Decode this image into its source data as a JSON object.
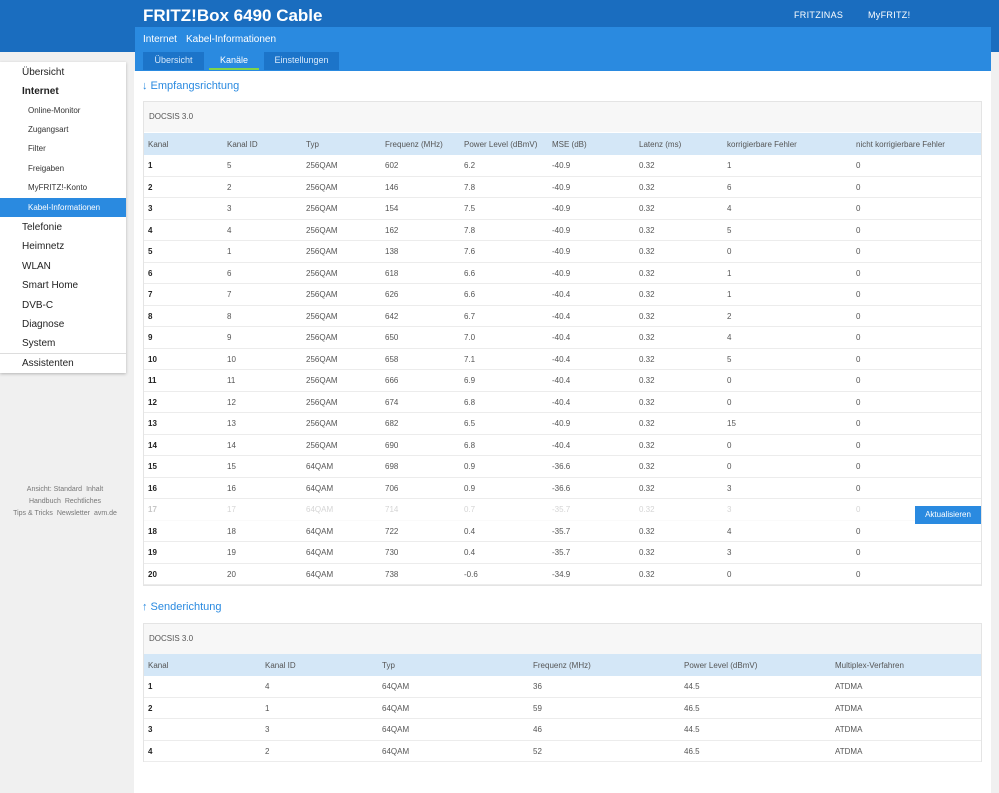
{
  "header": {
    "brand": "FRITZ!Box 6490 Cable",
    "links": [
      "FRITZINAS",
      "MyFRITZ!"
    ],
    "breadcrumb": [
      "Internet",
      "Kabel-Informationen"
    ],
    "tabs": [
      "Übersicht",
      "Kanäle",
      "Einstellungen"
    ],
    "active_tab": "Kanäle"
  },
  "sidebar": [
    {
      "label": "Übersicht",
      "level": 1
    },
    {
      "label": "Internet",
      "level": 1,
      "bold": true
    },
    {
      "label": "Online-Monitor",
      "level": 2
    },
    {
      "label": "Zugangsart",
      "level": 2
    },
    {
      "label": "Filter",
      "level": 2
    },
    {
      "label": "Freigaben",
      "level": 2
    },
    {
      "label": "MyFRITZ!-Konto",
      "level": 2
    },
    {
      "label": "Kabel-Informationen",
      "level": 2,
      "selected": true
    },
    {
      "label": "Telefonie",
      "level": 1
    },
    {
      "label": "Heimnetz",
      "level": 1
    },
    {
      "label": "WLAN",
      "level": 1
    },
    {
      "label": "Smart Home",
      "level": 1
    },
    {
      "label": "DVB-C",
      "level": 1
    },
    {
      "label": "Diagnose",
      "level": 1
    },
    {
      "label": "System",
      "level": 1
    },
    {
      "label": "Assistenten",
      "level": 1,
      "assist": true
    }
  ],
  "footer": [
    [
      "Ansicht: Standard",
      "Inhalt"
    ],
    [
      "Handbuch",
      "Rechtliches"
    ],
    [
      "Tips & Tricks",
      "Newsletter",
      "avm.de"
    ]
  ],
  "downstream": {
    "title": "↓ Empfangsrichtung",
    "docsis": "DOCSIS 3.0",
    "columns": [
      "Kanal",
      "Kanal ID",
      "Typ",
      "Frequenz (MHz)",
      "Power Level (dBmV)",
      "MSE (dB)",
      "Latenz (ms)",
      "korrigierbare Fehler",
      "nicht korrigierbare Fehler"
    ],
    "rows": [
      [
        "1",
        "5",
        "256QAM",
        "602",
        "6.2",
        "-40.9",
        "0.32",
        "1",
        "0"
      ],
      [
        "2",
        "2",
        "256QAM",
        "146",
        "7.8",
        "-40.9",
        "0.32",
        "6",
        "0"
      ],
      [
        "3",
        "3",
        "256QAM",
        "154",
        "7.5",
        "-40.9",
        "0.32",
        "4",
        "0"
      ],
      [
        "4",
        "4",
        "256QAM",
        "162",
        "7.8",
        "-40.9",
        "0.32",
        "5",
        "0"
      ],
      [
        "5",
        "1",
        "256QAM",
        "138",
        "7.6",
        "-40.9",
        "0.32",
        "0",
        "0"
      ],
      [
        "6",
        "6",
        "256QAM",
        "618",
        "6.6",
        "-40.9",
        "0.32",
        "1",
        "0"
      ],
      [
        "7",
        "7",
        "256QAM",
        "626",
        "6.6",
        "-40.4",
        "0.32",
        "1",
        "0"
      ],
      [
        "8",
        "8",
        "256QAM",
        "642",
        "6.7",
        "-40.4",
        "0.32",
        "2",
        "0"
      ],
      [
        "9",
        "9",
        "256QAM",
        "650",
        "7.0",
        "-40.4",
        "0.32",
        "4",
        "0"
      ],
      [
        "10",
        "10",
        "256QAM",
        "658",
        "7.1",
        "-40.4",
        "0.32",
        "5",
        "0"
      ],
      [
        "11",
        "11",
        "256QAM",
        "666",
        "6.9",
        "-40.4",
        "0.32",
        "0",
        "0"
      ],
      [
        "12",
        "12",
        "256QAM",
        "674",
        "6.8",
        "-40.4",
        "0.32",
        "0",
        "0"
      ],
      [
        "13",
        "13",
        "256QAM",
        "682",
        "6.5",
        "-40.9",
        "0.32",
        "15",
        "0"
      ],
      [
        "14",
        "14",
        "256QAM",
        "690",
        "6.8",
        "-40.4",
        "0.32",
        "0",
        "0"
      ],
      [
        "15",
        "15",
        "64QAM",
        "698",
        "0.9",
        "-36.6",
        "0.32",
        "0",
        "0"
      ],
      [
        "16",
        "16",
        "64QAM",
        "706",
        "0.9",
        "-36.6",
        "0.32",
        "3",
        "0"
      ],
      [
        "17",
        "17",
        "64QAM",
        "714",
        "0.7",
        "-35.7",
        "0.32",
        "3",
        "0"
      ],
      [
        "18",
        "18",
        "64QAM",
        "722",
        "0.4",
        "-35.7",
        "0.32",
        "4",
        "0"
      ],
      [
        "19",
        "19",
        "64QAM",
        "730",
        "0.4",
        "-35.7",
        "0.32",
        "3",
        "0"
      ],
      [
        "20",
        "20",
        "64QAM",
        "738",
        "-0.6",
        "-34.9",
        "0.32",
        "0",
        "0"
      ]
    ]
  },
  "upstream": {
    "title": "↑ Senderichtung",
    "docsis": "DOCSIS 3.0",
    "columns": [
      "Kanal",
      "Kanal ID",
      "Typ",
      "Frequenz (MHz)",
      "Power Level (dBmV)",
      "Multiplex-Verfahren"
    ],
    "rows": [
      [
        "1",
        "4",
        "64QAM",
        "36",
        "44.5",
        "ATDMA"
      ],
      [
        "2",
        "1",
        "64QAM",
        "59",
        "46.5",
        "ATDMA"
      ],
      [
        "3",
        "3",
        "64QAM",
        "46",
        "44.5",
        "ATDMA"
      ],
      [
        "4",
        "2",
        "64QAM",
        "52",
        "46.5",
        "ATDMA"
      ]
    ]
  },
  "refresh_button": "Aktualisieren"
}
